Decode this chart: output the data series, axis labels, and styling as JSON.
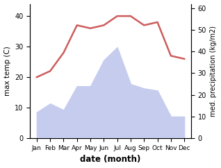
{
  "months": [
    "Jan",
    "Feb",
    "Mar",
    "Apr",
    "May",
    "Jun",
    "Jul",
    "Aug",
    "Sep",
    "Oct",
    "Nov",
    "Dec"
  ],
  "temperature": [
    20,
    22,
    28,
    37,
    36,
    37,
    40,
    40,
    37,
    38,
    27,
    26
  ],
  "precipitation": [
    12,
    16,
    13,
    24,
    24,
    36,
    42,
    25,
    23,
    22,
    10,
    10
  ],
  "temp_color": "#cd5c5c",
  "precip_fill_color": "#c5ccee",
  "ylabel_left": "max temp (C)",
  "ylabel_right": "med. precipitation (kg/m2)",
  "xlabel": "date (month)",
  "ylim_left": [
    0,
    44
  ],
  "ylim_right": [
    0,
    62
  ],
  "yticks_left": [
    0,
    10,
    20,
    30,
    40
  ],
  "yticks_right": [
    0,
    10,
    20,
    30,
    40,
    50,
    60
  ],
  "background_color": "#ffffff",
  "fig_width": 3.18,
  "fig_height": 2.42,
  "dpi": 100
}
